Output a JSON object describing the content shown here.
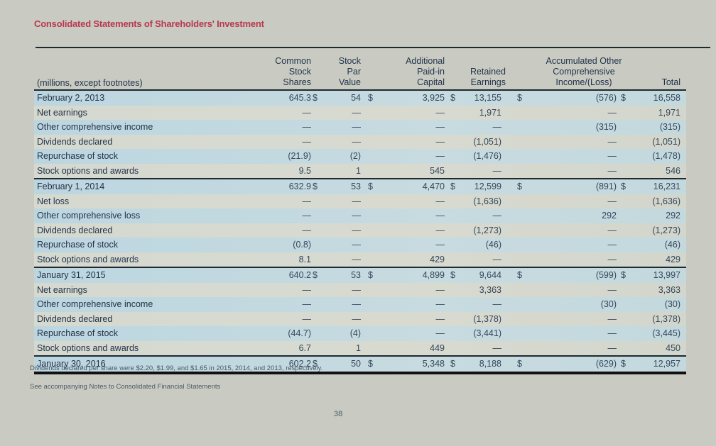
{
  "title": "Consolidated Statements of Shareholders' Investment",
  "units_label": "(millions, except footnotes)",
  "columns": [
    {
      "key": "shares",
      "label": "Common\nStock\nShares"
    },
    {
      "key": "par",
      "label": "Stock\nPar\nValue"
    },
    {
      "key": "apic",
      "label": "Additional\nPaid-in\nCapital"
    },
    {
      "key": "re",
      "label": "Retained\nEarnings"
    },
    {
      "key": "aoci",
      "label": "Accumulated Other\nComprehensive\nIncome/(Loss)"
    },
    {
      "key": "total",
      "label": "Total"
    }
  ],
  "rows": [
    {
      "label": "February 2, 2013",
      "shares": "645.3",
      "par": "54",
      "apic": "3,925",
      "re": "13,155",
      "aoci": "(576)",
      "total": "16,558",
      "balance": true
    },
    {
      "label": "Net earnings",
      "shares": "—",
      "par": "—",
      "apic": "—",
      "re": "1,971",
      "aoci": "—",
      "total": "1,971"
    },
    {
      "label": "Other comprehensive income",
      "shares": "—",
      "par": "—",
      "apic": "—",
      "re": "—",
      "aoci": "(315)",
      "total": "(315)"
    },
    {
      "label": "Dividends declared",
      "shares": "—",
      "par": "—",
      "apic": "—",
      "re": "(1,051)",
      "aoci": "—",
      "total": "(1,051)"
    },
    {
      "label": "Repurchase of stock",
      "shares": "(21.9)",
      "par": "(2)",
      "apic": "—",
      "re": "(1,476)",
      "aoci": "—",
      "total": "(1,478)"
    },
    {
      "label": "Stock options and awards",
      "shares": "9.5",
      "par": "1",
      "apic": "545",
      "re": "—",
      "aoci": "—",
      "total": "546"
    },
    {
      "label": "February 1, 2014",
      "shares": "632.9",
      "par": "53",
      "apic": "4,470",
      "re": "12,599",
      "aoci": "(891)",
      "total": "16,231",
      "balance": true
    },
    {
      "label": "Net loss",
      "shares": "—",
      "par": "—",
      "apic": "—",
      "re": "(1,636)",
      "aoci": "—",
      "total": "(1,636)"
    },
    {
      "label": "Other comprehensive loss",
      "shares": "—",
      "par": "—",
      "apic": "—",
      "re": "—",
      "aoci": "292",
      "total": "292"
    },
    {
      "label": "Dividends declared",
      "shares": "—",
      "par": "—",
      "apic": "—",
      "re": "(1,273)",
      "aoci": "—",
      "total": "(1,273)"
    },
    {
      "label": "Repurchase of stock",
      "shares": "(0.8)",
      "par": "—",
      "apic": "—",
      "re": "(46)",
      "aoci": "—",
      "total": "(46)"
    },
    {
      "label": "Stock options and awards",
      "shares": "8.1",
      "par": "—",
      "apic": "429",
      "re": "—",
      "aoci": "—",
      "total": "429"
    },
    {
      "label": "January 31, 2015",
      "shares": "640.2",
      "par": "53",
      "apic": "4,899",
      "re": "9,644",
      "aoci": "(599)",
      "total": "13,997",
      "balance": true
    },
    {
      "label": "Net earnings",
      "shares": "—",
      "par": "—",
      "apic": "—",
      "re": "3,363",
      "aoci": "—",
      "total": "3,363"
    },
    {
      "label": "Other comprehensive income",
      "shares": "—",
      "par": "—",
      "apic": "—",
      "re": "—",
      "aoci": "(30)",
      "total": "(30)"
    },
    {
      "label": "Dividends declared",
      "shares": "—",
      "par": "—",
      "apic": "—",
      "re": "(1,378)",
      "aoci": "—",
      "total": "(1,378)"
    },
    {
      "label": "Repurchase of stock",
      "shares": "(44.7)",
      "par": "(4)",
      "apic": "—",
      "re": "(3,441)",
      "aoci": "—",
      "total": "(3,445)"
    },
    {
      "label": "Stock options and awards",
      "shares": "6.7",
      "par": "1",
      "apic": "449",
      "re": "—",
      "aoci": "—",
      "total": "450"
    },
    {
      "label": "January 30, 2016",
      "shares": "602.2",
      "par": "50",
      "apic": "5,348",
      "re": "8,188",
      "aoci": "(629)",
      "total": "12,957",
      "balance": true
    }
  ],
  "currency_symbol": "$",
  "footnote": "Dividends declared per share were $2.20, $1.99, and $1.65 in 2015, 2014, and 2013, respectively.",
  "notes_ref": "See accompanying Notes to Consolidated Financial Statements",
  "page_number": "38"
}
